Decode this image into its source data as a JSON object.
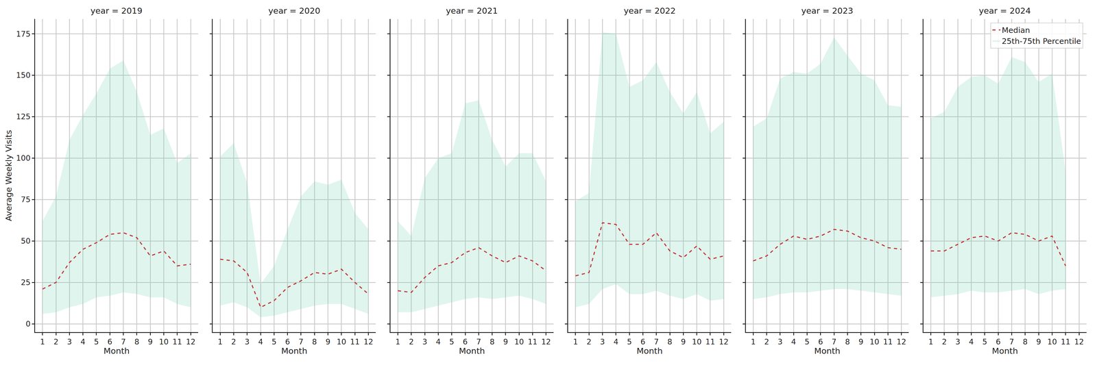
{
  "chart_data": [
    {
      "type": "line",
      "title": "year = 2019",
      "xlabel": "Month",
      "ylabel": "Average Weekly Visits",
      "x": [
        1,
        2,
        3,
        4,
        5,
        6,
        7,
        8,
        9,
        10,
        11,
        12
      ],
      "series": [
        {
          "name": "Median",
          "color": "#c23b3b",
          "line_style": "dashed",
          "values": [
            21,
            25,
            37,
            45,
            49,
            54,
            55,
            52,
            41,
            44,
            35,
            36
          ]
        },
        {
          "name": "25th-75th Percentile",
          "type": "area",
          "color": "#66cdaa",
          "lower": [
            6,
            7,
            10,
            12,
            16,
            17,
            19,
            18,
            16,
            16,
            12,
            10
          ],
          "upper": [
            62,
            77,
            111,
            126,
            139,
            154,
            159,
            140,
            114,
            118,
            97,
            103
          ]
        }
      ],
      "xlim": [
        0.45,
        12.55
      ],
      "xticks": [
        1,
        2,
        3,
        4,
        5,
        6,
        7,
        8,
        9,
        10,
        11,
        12
      ],
      "ylim": [
        -5,
        184
      ],
      "yticks": [
        0,
        25,
        50,
        75,
        100,
        125,
        150,
        175
      ],
      "grid": true
    },
    {
      "type": "line",
      "title": "year = 2020",
      "xlabel": "Month",
      "x": [
        1,
        2,
        3,
        4,
        5,
        6,
        7,
        8,
        9,
        10,
        11,
        12
      ],
      "series": [
        {
          "name": "Median",
          "color": "#c23b3b",
          "line_style": "dashed",
          "values": [
            39,
            38,
            31,
            10,
            14,
            22,
            26,
            31,
            30,
            33,
            25,
            18
          ]
        },
        {
          "name": "25th-75th Percentile",
          "type": "area",
          "color": "#66cdaa",
          "lower": [
            11,
            13,
            10,
            4,
            5,
            7,
            9,
            11,
            12,
            12,
            9,
            6
          ],
          "upper": [
            101,
            109,
            85,
            24,
            35,
            57,
            77,
            86,
            84,
            87,
            67,
            57
          ]
        }
      ],
      "xlim": [
        0.45,
        12.55
      ],
      "xticks": [
        1,
        2,
        3,
        4,
        5,
        6,
        7,
        8,
        9,
        10,
        11,
        12
      ],
      "ylim": [
        -5,
        184
      ],
      "yticks": [
        0,
        25,
        50,
        75,
        100,
        125,
        150,
        175
      ],
      "grid": true,
      "tick_labels": "x"
    },
    {
      "type": "line",
      "title": "year = 2021",
      "xlabel": "Month",
      "x": [
        1,
        2,
        3,
        4,
        5,
        6,
        7,
        8,
        9,
        10,
        11,
        12
      ],
      "series": [
        {
          "name": "Median",
          "color": "#c23b3b",
          "line_style": "dashed",
          "values": [
            20,
            19,
            28,
            35,
            37,
            43,
            46,
            41,
            37,
            41,
            38,
            32
          ]
        },
        {
          "name": "25th-75th Percentile",
          "type": "area",
          "color": "#66cdaa",
          "lower": [
            7,
            7,
            9,
            11,
            13,
            15,
            16,
            15,
            16,
            17,
            15,
            12
          ],
          "upper": [
            62,
            53,
            88,
            100,
            103,
            133,
            135,
            111,
            95,
            103,
            103,
            86
          ]
        }
      ],
      "xlim": [
        0.45,
        12.55
      ],
      "xticks": [
        1,
        2,
        3,
        4,
        5,
        6,
        7,
        8,
        9,
        10,
        11,
        12
      ],
      "ylim": [
        -5,
        184
      ],
      "yticks": [
        0,
        25,
        50,
        75,
        100,
        125,
        150,
        175
      ],
      "grid": true,
      "tick_labels": "x"
    },
    {
      "type": "line",
      "title": "year = 2022",
      "xlabel": "Month",
      "x": [
        1,
        2,
        3,
        4,
        5,
        6,
        7,
        8,
        9,
        10,
        11,
        12
      ],
      "series": [
        {
          "name": "Median",
          "color": "#c23b3b",
          "line_style": "dashed",
          "values": [
            29,
            31,
            61,
            60,
            48,
            48,
            55,
            44,
            40,
            47,
            39,
            41
          ]
        },
        {
          "name": "25th-75th Percentile",
          "type": "area",
          "color": "#66cdaa",
          "lower": [
            10,
            12,
            21,
            24,
            18,
            18,
            20,
            17,
            15,
            18,
            14,
            15
          ],
          "upper": [
            74,
            79,
            176,
            175,
            143,
            147,
            158,
            140,
            127,
            140,
            115,
            122
          ]
        }
      ],
      "xlim": [
        0.45,
        12.55
      ],
      "xticks": [
        1,
        2,
        3,
        4,
        5,
        6,
        7,
        8,
        9,
        10,
        11,
        12
      ],
      "ylim": [
        -5,
        184
      ],
      "yticks": [
        0,
        25,
        50,
        75,
        100,
        125,
        150,
        175
      ],
      "grid": true,
      "tick_labels": "x"
    },
    {
      "type": "line",
      "title": "year = 2023",
      "xlabel": "Month",
      "x": [
        1,
        2,
        3,
        4,
        5,
        6,
        7,
        8,
        9,
        10,
        11,
        12
      ],
      "series": [
        {
          "name": "Median",
          "color": "#c23b3b",
          "line_style": "dashed",
          "values": [
            38,
            41,
            48,
            53,
            51,
            53,
            57,
            56,
            52,
            50,
            46,
            45
          ]
        },
        {
          "name": "25th-75th Percentile",
          "type": "area",
          "color": "#66cdaa",
          "lower": [
            15,
            16,
            18,
            19,
            19,
            20,
            21,
            21,
            20,
            19,
            18,
            17
          ],
          "upper": [
            119,
            124,
            148,
            152,
            151,
            157,
            173,
            162,
            151,
            147,
            132,
            131
          ]
        }
      ],
      "xlim": [
        0.45,
        12.55
      ],
      "xticks": [
        1,
        2,
        3,
        4,
        5,
        6,
        7,
        8,
        9,
        10,
        11,
        12
      ],
      "ylim": [
        -5,
        184
      ],
      "yticks": [
        0,
        25,
        50,
        75,
        100,
        125,
        150,
        175
      ],
      "grid": true,
      "tick_labels": "x"
    },
    {
      "type": "line",
      "title": "year = 2024",
      "xlabel": "Month",
      "x": [
        1,
        2,
        3,
        4,
        5,
        6,
        7,
        8,
        9,
        10,
        11
      ],
      "series": [
        {
          "name": "Median",
          "color": "#c23b3b",
          "line_style": "dashed",
          "values": [
            44,
            44,
            48,
            52,
            53,
            50,
            55,
            54,
            50,
            53,
            35
          ]
        },
        {
          "name": "25th-75th Percentile",
          "type": "area",
          "color": "#66cdaa",
          "lower": [
            16,
            17,
            18,
            20,
            19,
            19,
            20,
            21,
            18,
            20,
            21
          ],
          "upper": [
            124,
            128,
            143,
            149,
            150,
            145,
            161,
            158,
            146,
            151,
            92
          ]
        }
      ],
      "xlim": [
        0.45,
        12.55
      ],
      "xticks": [
        1,
        2,
        3,
        4,
        5,
        6,
        7,
        8,
        9,
        10,
        11,
        12
      ],
      "ylim": [
        -5,
        184
      ],
      "yticks": [
        0,
        25,
        50,
        75,
        100,
        125,
        150,
        175
      ],
      "grid": true,
      "tick_labels": "x",
      "legend": "upper right"
    }
  ]
}
